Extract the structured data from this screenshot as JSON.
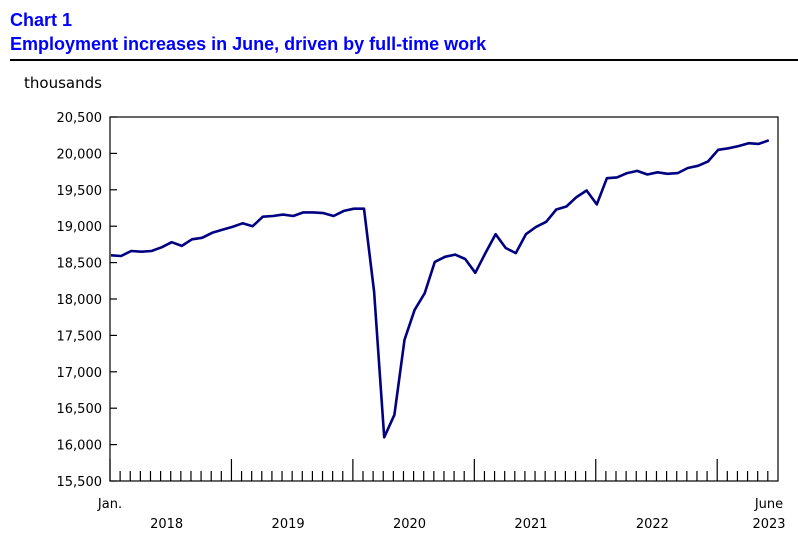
{
  "header": {
    "chart_number": "Chart 1",
    "title": "Employment increases in June, driven by full-time work"
  },
  "chart_data": {
    "type": "line",
    "title": "Employment increases in June, driven by full-time work",
    "ylabel": "thousands",
    "xlabel": "",
    "ylim": [
      15500,
      20500
    ],
    "yticks": [
      "15,500",
      "16,000",
      "16,500",
      "17,000",
      "17,500",
      "18,000",
      "18,500",
      "19,000",
      "19,500",
      "20,000",
      "20,500"
    ],
    "ytick_values": [
      15500,
      16000,
      16500,
      17000,
      17500,
      18000,
      18500,
      19000,
      19500,
      20000,
      20500
    ],
    "x_start_label": "Jan.",
    "x_end_label": "June",
    "year_labels": [
      "2018",
      "2019",
      "2020",
      "2021",
      "2022",
      "2023"
    ],
    "x_range": [
      "2018-01",
      "2023-06"
    ],
    "grid": false,
    "line_color": "#000080",
    "series": [
      {
        "values": [
          18600,
          18590,
          18660,
          18650,
          18660,
          18710,
          18780,
          18730,
          18820,
          18840,
          18910,
          18950,
          18990,
          19040,
          19000,
          19130,
          19140,
          19160,
          19140,
          19190,
          19190,
          19180,
          19140,
          19210,
          19240,
          19240,
          18100,
          16100,
          16410,
          17440,
          17850,
          18080,
          18510,
          18580,
          18610,
          18550,
          18360,
          18630,
          18890,
          18700,
          18630,
          18890,
          18990,
          19060,
          19230,
          19270,
          19400,
          19490,
          19300,
          19660,
          19670,
          19730,
          19760,
          19710,
          19740,
          19720,
          19730,
          19800,
          19830,
          19890,
          20050,
          20070,
          20100,
          20140,
          20130,
          20180
        ]
      }
    ]
  }
}
